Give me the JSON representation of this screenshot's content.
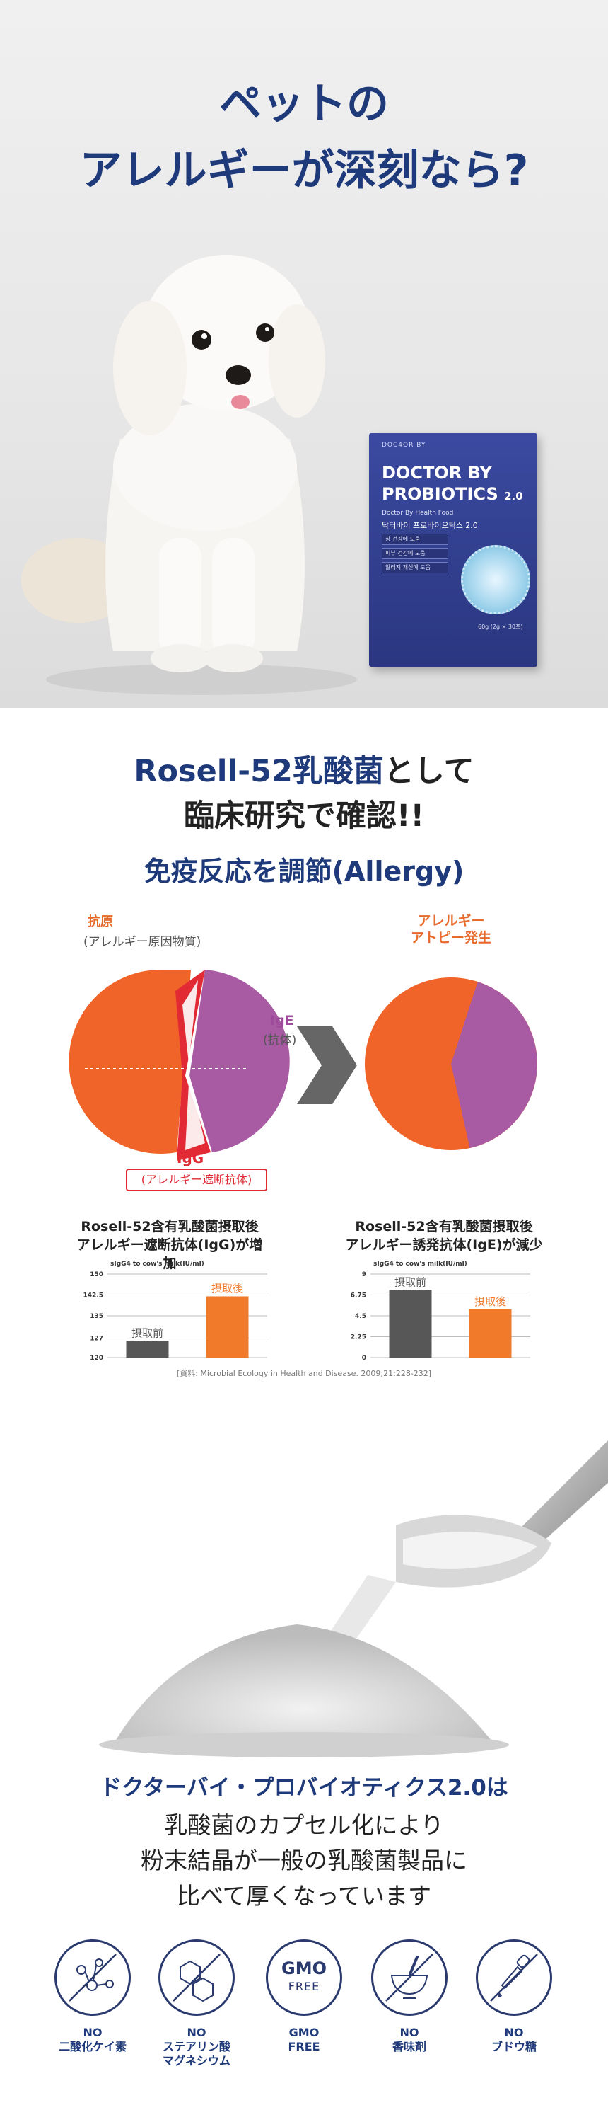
{
  "hero": {
    "title_line1": "ペットの",
    "title_line2": "アレルギーが深刻なら?"
  },
  "product_box": {
    "brand_top": "DOC4OR BY",
    "name_line1": "DOCTOR BY",
    "name_line2": "PROBIOTICS",
    "version": "2.0",
    "subtitle": "Doctor By Health Food",
    "korean_name": "닥터바이 프로바이오틱스 2.0",
    "tags": [
      "장 건강에 도움",
      "피부 건강에 도움",
      "알러지 개선에 도움"
    ],
    "net": "60g (2g × 30포)"
  },
  "study": {
    "line1_brand": "Rosell-52乳酸菌",
    "line1_rest": "として",
    "line2": "臨床研究で確認!!",
    "section_title": "免疫反応を調節(Allergy)"
  },
  "diagram": {
    "antigen_label": "抗原",
    "antigen_sub": "(アレルギー原因物質)",
    "ige_label": "IgE",
    "ige_sub": "(抗体)",
    "igg_label": "IgG",
    "igg_sub": "(アレルギー遮断抗体)",
    "result_line1": "アレルギー",
    "result_line2": "アトピー発生",
    "colors": {
      "orange": "#f0642a",
      "purple": "#a85aa2",
      "red": "#e12a34",
      "arrow": "#666666"
    }
  },
  "chart_data": [
    {
      "type": "bar",
      "title_line1": "Rosell-52含有乳酸菌摂取後",
      "title_line2": "アレルギー遮断抗体(IgG)が増加",
      "ylabel": "sIgG4 to cow's milk(IU/ml)",
      "ylim": [
        120,
        150
      ],
      "yticks": [
        "150",
        "142.5",
        "135",
        "127",
        "120"
      ],
      "ytick_values": [
        150,
        142.5,
        135,
        127,
        120
      ],
      "categories": [
        "摂取前",
        "摂取後"
      ],
      "values": [
        126,
        142
      ],
      "colors": [
        "#575757",
        "#f07a2a"
      ]
    },
    {
      "type": "bar",
      "title_line1": "Rosell-52含有乳酸菌摂取後",
      "title_line2": "アレルギー誘発抗体(IgE)が減少",
      "ylabel": "sIgG4 to cow's milk(IU/ml)",
      "ylim": [
        0,
        9
      ],
      "yticks": [
        "9",
        "6.75",
        "4.5",
        "2.25",
        "0"
      ],
      "ytick_values": [
        9,
        6.75,
        4.5,
        2.25,
        0
      ],
      "categories": [
        "摂取前",
        "摂取後"
      ],
      "values": [
        7.3,
        5.2
      ],
      "colors": [
        "#575757",
        "#f07a2a"
      ]
    }
  ],
  "source": "[資料: Microbial Ecology in Health and Disease. 2009;21:228-232]",
  "pitch": {
    "line1": "ドクターバイ・プロバイオティクス2.0は",
    "line2": "乳酸菌のカプセル化により",
    "line3": "粉末結晶が一般の乳酸菌製品に",
    "line4": "比べて厚くなっています"
  },
  "features": [
    {
      "icon": "molecule-icon",
      "label_line1": "NO",
      "label_line2": "二酸化ケイ素",
      "label_line3": ""
    },
    {
      "icon": "hexagon-icon",
      "label_line1": "NO",
      "label_line2": "ステアリン酸",
      "label_line3": "マグネシウム"
    },
    {
      "icon": "gmo-free-icon",
      "label_line1": "GMO",
      "label_line2": "FREE",
      "label_line3": "",
      "badge_line1": "GMO",
      "badge_line2": "FREE"
    },
    {
      "icon": "mortar-icon",
      "label_line1": "NO",
      "label_line2": "香味剤",
      "label_line3": ""
    },
    {
      "icon": "dropper-icon",
      "label_line1": "NO",
      "label_line2": "ブドウ糖",
      "label_line3": ""
    }
  ]
}
